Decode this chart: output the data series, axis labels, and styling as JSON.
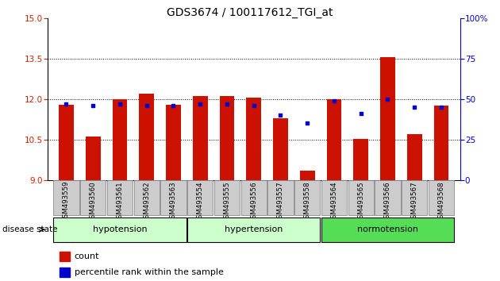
{
  "title": "GDS3674 / 100117612_TGI_at",
  "samples": [
    "GSM493559",
    "GSM493560",
    "GSM493561",
    "GSM493562",
    "GSM493563",
    "GSM493554",
    "GSM493555",
    "GSM493556",
    "GSM493557",
    "GSM493558",
    "GSM493564",
    "GSM493565",
    "GSM493566",
    "GSM493567",
    "GSM493568"
  ],
  "red_values": [
    11.8,
    10.6,
    12.0,
    12.2,
    11.8,
    12.1,
    12.1,
    12.05,
    11.3,
    9.35,
    12.0,
    10.52,
    13.55,
    10.7,
    11.75
  ],
  "blue_values": [
    47,
    46,
    47,
    46,
    46,
    47,
    47,
    46,
    40,
    35,
    49,
    41,
    50,
    45,
    45
  ],
  "group_configs": [
    {
      "label": "hypotension",
      "start": 0,
      "end": 5,
      "color": "#ccffcc"
    },
    {
      "label": "hypertension",
      "start": 5,
      "end": 10,
      "color": "#ccffcc"
    },
    {
      "label": "normotension",
      "start": 10,
      "end": 15,
      "color": "#55dd55"
    }
  ],
  "ylim_left": [
    9,
    15
  ],
  "ylim_right": [
    0,
    100
  ],
  "yticks_left": [
    9,
    10.5,
    12,
    13.5,
    15
  ],
  "yticks_right": [
    0,
    25,
    50,
    75,
    100
  ],
  "ytick_labels_right": [
    "0",
    "25",
    "50",
    "75",
    "100%"
  ],
  "bar_color": "#cc1100",
  "dot_color": "#0000cc",
  "bar_bottom": 9,
  "grid_lines": [
    10.5,
    12,
    13.5
  ],
  "title_fontsize": 10,
  "tick_fontsize": 7.5,
  "legend_items": [
    {
      "label": "count",
      "color": "#cc1100"
    },
    {
      "label": "percentile rank within the sample",
      "color": "#0000cc"
    }
  ]
}
